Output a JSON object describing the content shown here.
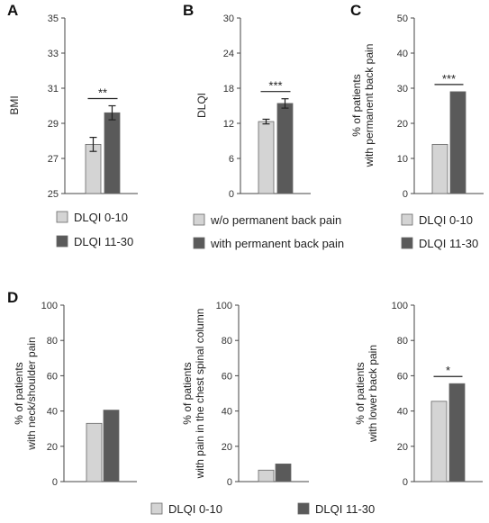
{
  "figure": {
    "legend_ab": [
      "DLQI 0-10",
      "DLQI 11-30"
    ],
    "legend_b": [
      "w/o permanent back pain",
      "with permanent back pain"
    ],
    "colors": {
      "light": "#d4d4d4",
      "dark": "#5a5a5a",
      "edge": "#666666"
    }
  },
  "chart_data": [
    {
      "panel": "A",
      "type": "bar",
      "categories": [
        "DLQI 0-10",
        "DLQI 11-30"
      ],
      "values": [
        27.8,
        29.6
      ],
      "errors": [
        0.4,
        0.4
      ],
      "ylabel": "BMI",
      "ylim": [
        25,
        35
      ],
      "yticks": [
        25,
        27,
        29,
        31,
        33,
        35
      ],
      "significance": "**",
      "legend": "bottom"
    },
    {
      "panel": "B",
      "type": "bar",
      "categories": [
        "w/o permanent back pain",
        "with permanent back pain"
      ],
      "values": [
        12.3,
        15.4
      ],
      "errors": [
        0.4,
        0.8
      ],
      "ylabel": "DLQI",
      "ylim": [
        0,
        30
      ],
      "yticks": [
        0,
        6,
        12,
        18,
        24,
        30
      ],
      "significance": "***",
      "legend": "bottom"
    },
    {
      "panel": "C",
      "type": "bar",
      "categories": [
        "DLQI 0-10",
        "DLQI 11-30"
      ],
      "values": [
        14,
        29
      ],
      "ylabel": [
        "% of patients",
        "with permanent back pain"
      ],
      "ylim": [
        0,
        50
      ],
      "yticks": [
        0,
        10,
        20,
        30,
        40,
        50
      ],
      "significance": "***",
      "legend": "bottom"
    },
    {
      "panel": "D",
      "type": "bar",
      "categories": [
        "DLQI 0-10",
        "DLQI 11-30"
      ],
      "values": [
        33,
        40.5
      ],
      "ylabel": [
        "% of patients",
        "with neck/shoulder pain"
      ],
      "ylim": [
        0,
        100
      ],
      "yticks": [
        0,
        20,
        40,
        60,
        80,
        100
      ],
      "significance": "",
      "legend": "bottom"
    },
    {
      "panel": "",
      "type": "bar",
      "categories": [
        "DLQI 0-10",
        "DLQI 11-30"
      ],
      "values": [
        6.5,
        10
      ],
      "ylabel": [
        "% of patients",
        "with pain in the chest spinal column"
      ],
      "ylim": [
        0,
        100
      ],
      "yticks": [
        0,
        20,
        40,
        60,
        80,
        100
      ],
      "significance": "",
      "legend": "bottom"
    },
    {
      "panel": "",
      "type": "bar",
      "categories": [
        "DLQI 0-10",
        "DLQI 11-30"
      ],
      "values": [
        45.5,
        55.5
      ],
      "ylabel": [
        "% of patients",
        "with lower back pain"
      ],
      "ylim": [
        0,
        100
      ],
      "yticks": [
        0,
        20,
        40,
        60,
        80,
        100
      ],
      "significance": "*",
      "legend": "bottom"
    }
  ]
}
